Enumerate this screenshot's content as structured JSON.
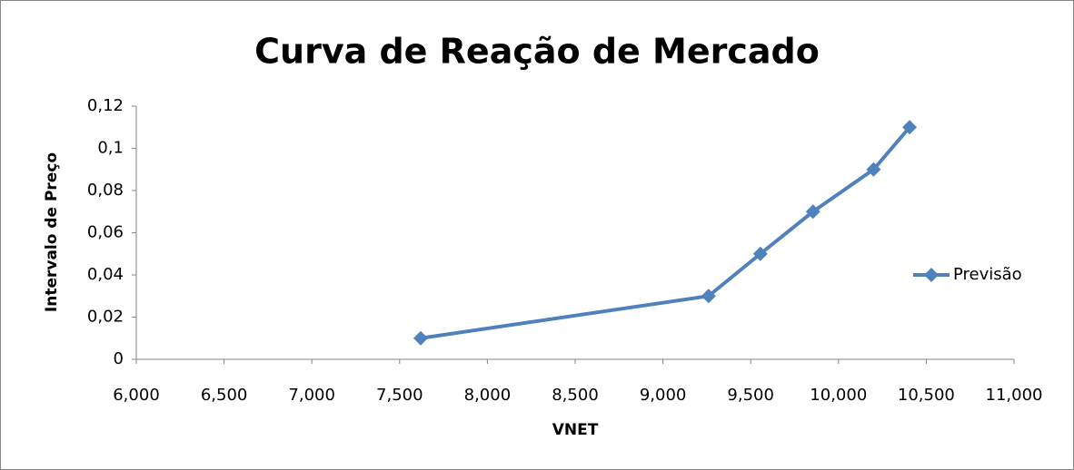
{
  "chart_data": {
    "type": "scatter",
    "title": "Curva de Reação de Mercado",
    "x_label": "VNET",
    "y_label": "Intervalo de Preço",
    "series": [
      {
        "name": "Previsão",
        "color": "#4f81bd",
        "x": [
          7620,
          9260,
          9555,
          9855,
          10200,
          10405
        ],
        "values": [
          0.01,
          0.03,
          0.05,
          0.07,
          0.09,
          0.11
        ]
      }
    ],
    "xlim": [
      6000,
      11000
    ],
    "xticks": [
      {
        "value": 6000,
        "label": "6,000"
      },
      {
        "value": 6500,
        "label": "6,500"
      },
      {
        "value": 7000,
        "label": "7,000"
      },
      {
        "value": 7500,
        "label": "7,500"
      },
      {
        "value": 8000,
        "label": "8,000"
      },
      {
        "value": 8500,
        "label": "8,500"
      },
      {
        "value": 9000,
        "label": "9,000"
      },
      {
        "value": 9500,
        "label": "9,500"
      },
      {
        "value": 10000,
        "label": "10,000"
      },
      {
        "value": 10500,
        "label": "10,500"
      },
      {
        "value": 11000,
        "label": "11,000"
      }
    ],
    "ylim": [
      0,
      0.12
    ],
    "yticks": [
      0,
      {
        "value": 0.02,
        "label": "0,02"
      },
      {
        "value": 0.04,
        "label": "0,04"
      },
      {
        "value": 0.06,
        "label": "0,06"
      },
      {
        "value": 0.08,
        "label": "0,08"
      },
      {
        "value": 0.1,
        "label": "0,1"
      },
      {
        "value": 0.12,
        "label": "0,12"
      }
    ],
    "grid": false,
    "legend": "right"
  }
}
